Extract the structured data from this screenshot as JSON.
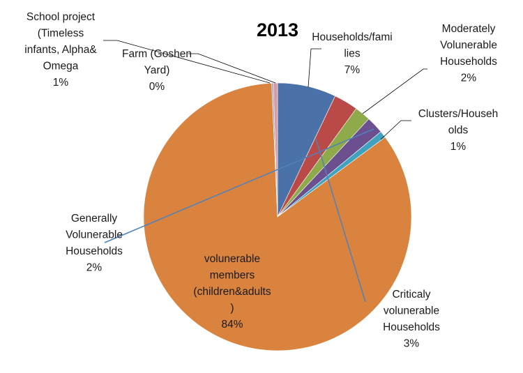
{
  "chart_data": {
    "type": "pie",
    "title": "2013",
    "slices": [
      {
        "label": [
          "Households/fami",
          "lies"
        ],
        "value": 7,
        "pct": "7%",
        "color": "#4a72a8"
      },
      {
        "label": [
          "Criticaly",
          "volunerable",
          "Households"
        ],
        "value": 3,
        "pct": "3%",
        "color": "#b94a48"
      },
      {
        "label": [
          "Moderately",
          "Volunerable",
          "Households"
        ],
        "value": 2,
        "pct": "2%",
        "color": "#8faa4b"
      },
      {
        "label": [
          "Generally",
          "Volunerable",
          "Households"
        ],
        "value": 2,
        "pct": "2%",
        "color": "#6b4f8e"
      },
      {
        "label": [
          "Clusters/Househ",
          "olds"
        ],
        "value": 1,
        "pct": "1%",
        "color": "#3fa3bf"
      },
      {
        "label": [
          "volunerable",
          "members",
          "(children&adults",
          ")"
        ],
        "value": 84,
        "pct": "84%",
        "color": "#d9833f"
      },
      {
        "label": [
          "Farm (Goshen",
          "Yard)"
        ],
        "value": 0,
        "pct": "0%",
        "color": "#8aa5c9"
      },
      {
        "label": [
          "School project",
          "(Timeless",
          "infants, Alpha&",
          "Omega"
        ],
        "value": 1,
        "pct": "1%",
        "color": "#d99aa0"
      }
    ]
  }
}
